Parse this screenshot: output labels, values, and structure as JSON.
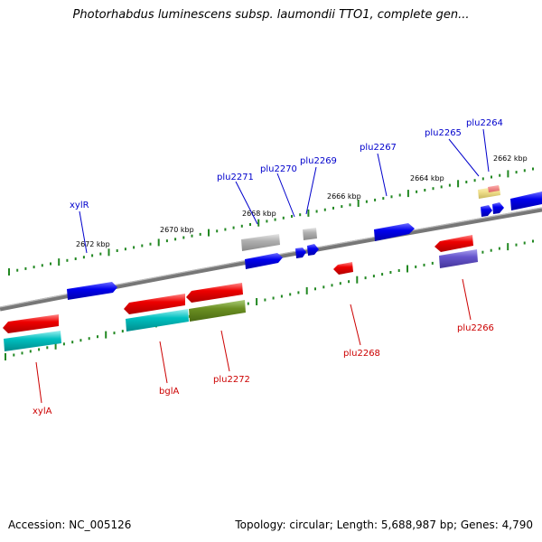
{
  "title": "Photorhabdus luminescens subsp. laumondii TTO1, complete gen...",
  "footer": {
    "accession": "Accession: NC_005126",
    "topology": "Topology: circular; Length: 5,688,987 bp; Genes: 4,790"
  },
  "scale_labels": [
    "2672 kbp",
    "2670 kbp",
    "2668 kbp",
    "2666 kbp",
    "2664 kbp",
    "2662 kbp"
  ],
  "gene_labels": {
    "top": [
      "xylR",
      "plu2271",
      "plu2270",
      "plu2269",
      "plu2267",
      "plu2265",
      "plu2264"
    ],
    "bottom": [
      "xylA",
      "bglA",
      "plu2272",
      "plu2268",
      "plu2266"
    ]
  },
  "colors": {
    "label_top": "#0000cc",
    "label_bottom": "#cc0000",
    "forward_gene": "#0000ee",
    "reverse_gene": "#ee0000",
    "cyan_feature": "#00bbbb",
    "olive_feature": "#669922",
    "grey_feature": "#aaaaaa",
    "purple_feature": "#6655cc",
    "yellow_feature": "#eedd88",
    "tick": "#228822",
    "backbone": "#777777"
  }
}
